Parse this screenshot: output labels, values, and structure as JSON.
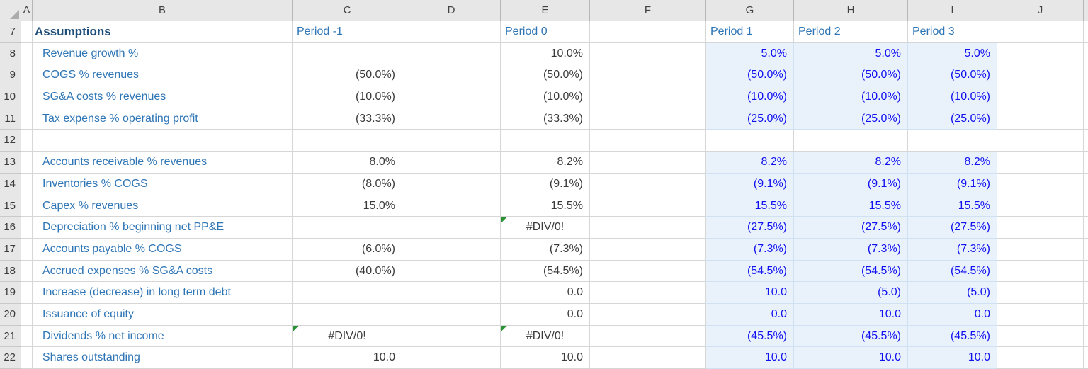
{
  "colors": {
    "label_blue": "#2E75B6",
    "title_navy": "#1F4E79",
    "value_dark": "#3A3A3A",
    "input_blue": "#1010F0",
    "fill_blue": "#E9F2FB",
    "flag_green": "#2A9135",
    "header_bg": "#E7E7E7",
    "gridline": "#D6D6D6",
    "gridline_blue": "#CFE1F2"
  },
  "sheet": {
    "column_headers": [
      "A",
      "B",
      "C",
      "D",
      "E",
      "F",
      "G",
      "H",
      "I",
      "J"
    ],
    "rows": [
      {
        "num": "7",
        "type": "header",
        "filled": false,
        "label": "Assumptions",
        "cells": {
          "C": {
            "v": "Period -1"
          },
          "E": {
            "v": "Period 0"
          },
          "G": {
            "v": "Period 1"
          },
          "H": {
            "v": "Period 2"
          },
          "I": {
            "v": "Period 3"
          }
        }
      },
      {
        "num": "8",
        "filled": true,
        "label": "Revenue growth %",
        "cells": {
          "E": {
            "v": "10.0%"
          },
          "G": {
            "v": "5.0%"
          },
          "H": {
            "v": "5.0%"
          },
          "I": {
            "v": "5.0%"
          }
        }
      },
      {
        "num": "9",
        "filled": true,
        "label": "COGS % revenues",
        "cells": {
          "C": {
            "v": "(50.0%)"
          },
          "E": {
            "v": "(50.0%)"
          },
          "G": {
            "v": "(50.0%)"
          },
          "H": {
            "v": "(50.0%)"
          },
          "I": {
            "v": "(50.0%)"
          }
        }
      },
      {
        "num": "10",
        "filled": true,
        "label": "SG&A costs % revenues",
        "cells": {
          "C": {
            "v": "(10.0%)"
          },
          "E": {
            "v": "(10.0%)"
          },
          "G": {
            "v": "(10.0%)"
          },
          "H": {
            "v": "(10.0%)"
          },
          "I": {
            "v": "(10.0%)"
          }
        }
      },
      {
        "num": "11",
        "filled": true,
        "label": "Tax expense % operating profit",
        "cells": {
          "C": {
            "v": "(33.3%)"
          },
          "E": {
            "v": "(33.3%)"
          },
          "G": {
            "v": "(25.0%)"
          },
          "H": {
            "v": "(25.0%)"
          },
          "I": {
            "v": "(25.0%)"
          }
        }
      },
      {
        "num": "12",
        "filled": false,
        "label": "",
        "cells": {}
      },
      {
        "num": "13",
        "filled": true,
        "label": "Accounts receivable % revenues",
        "cells": {
          "C": {
            "v": "8.0%"
          },
          "E": {
            "v": "8.2%"
          },
          "G": {
            "v": "8.2%"
          },
          "H": {
            "v": "8.2%"
          },
          "I": {
            "v": "8.2%"
          }
        }
      },
      {
        "num": "14",
        "filled": true,
        "label": "Inventories % COGS",
        "cells": {
          "C": {
            "v": "(8.0%)"
          },
          "E": {
            "v": "(9.1%)"
          },
          "G": {
            "v": "(9.1%)"
          },
          "H": {
            "v": "(9.1%)"
          },
          "I": {
            "v": "(9.1%)"
          }
        }
      },
      {
        "num": "15",
        "filled": true,
        "label": "Capex % revenues",
        "cells": {
          "C": {
            "v": "15.0%"
          },
          "E": {
            "v": "15.5%"
          },
          "G": {
            "v": "15.5%"
          },
          "H": {
            "v": "15.5%"
          },
          "I": {
            "v": "15.5%"
          }
        }
      },
      {
        "num": "16",
        "filled": true,
        "label": "Depreciation % beginning net PP&E",
        "cells": {
          "E": {
            "v": "#DIV/0!",
            "error": true,
            "flag": true
          },
          "G": {
            "v": "(27.5%)"
          },
          "H": {
            "v": "(27.5%)"
          },
          "I": {
            "v": "(27.5%)"
          }
        }
      },
      {
        "num": "17",
        "filled": true,
        "label": "Accounts payable % COGS",
        "cells": {
          "C": {
            "v": "(6.0%)"
          },
          "E": {
            "v": "(7.3%)"
          },
          "G": {
            "v": "(7.3%)"
          },
          "H": {
            "v": "(7.3%)"
          },
          "I": {
            "v": "(7.3%)"
          }
        }
      },
      {
        "num": "18",
        "filled": true,
        "label": "Accrued expenses % SG&A costs",
        "cells": {
          "C": {
            "v": "(40.0%)"
          },
          "E": {
            "v": "(54.5%)"
          },
          "G": {
            "v": "(54.5%)"
          },
          "H": {
            "v": "(54.5%)"
          },
          "I": {
            "v": "(54.5%)"
          }
        }
      },
      {
        "num": "19",
        "filled": true,
        "label": "Increase (decrease) in long term debt",
        "cells": {
          "E": {
            "v": "0.0"
          },
          "G": {
            "v": "10.0"
          },
          "H": {
            "v": "(5.0)"
          },
          "I": {
            "v": "(5.0)"
          }
        }
      },
      {
        "num": "20",
        "filled": true,
        "label": "Issuance of equity",
        "cells": {
          "E": {
            "v": "0.0"
          },
          "G": {
            "v": "0.0"
          },
          "H": {
            "v": "10.0"
          },
          "I": {
            "v": "0.0"
          }
        }
      },
      {
        "num": "21",
        "filled": true,
        "label": "Dividends % net income",
        "cells": {
          "C": {
            "v": "#DIV/0!",
            "error": true,
            "flag": true
          },
          "E": {
            "v": "#DIV/0!",
            "error": true,
            "flag": true
          },
          "G": {
            "v": "(45.5%)"
          },
          "H": {
            "v": "(45.5%)"
          },
          "I": {
            "v": "(45.5%)"
          }
        }
      },
      {
        "num": "22",
        "filled": true,
        "label": "Shares outstanding",
        "cells": {
          "C": {
            "v": "10.0"
          },
          "E": {
            "v": "10.0"
          },
          "G": {
            "v": "10.0"
          },
          "H": {
            "v": "10.0"
          },
          "I": {
            "v": "10.0"
          }
        }
      }
    ]
  }
}
